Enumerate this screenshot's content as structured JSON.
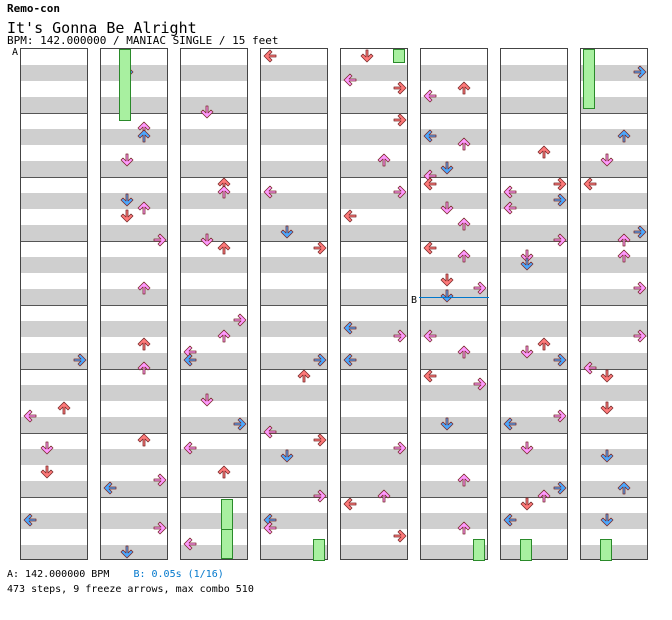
{
  "song": {
    "artist": "Remo-con",
    "title": "It's Gonna Be Alright",
    "meta": "BPM: 142.000000 / MANIAC SINGLE / 15 feet"
  },
  "markers": {
    "a": "A",
    "b": "B"
  },
  "footer": {
    "bpm_a": "A: 142.000000 BPM",
    "bpm_b": "B: 0.05s (1/16)",
    "stats": "473 steps, 9 freeze arrows, max combo 510"
  },
  "colors": {
    "quarter": "#ff7a7a",
    "eighth": "#4aa8ff",
    "sixteenth": "#ff99ff",
    "freeze": "#a8f0a0",
    "row_band": "#cfcfcf"
  },
  "icons": [
    "left-arrow-icon",
    "down-arrow-icon",
    "up-arrow-icon",
    "right-arrow-icon",
    "freeze-arrow-icon"
  ]
}
